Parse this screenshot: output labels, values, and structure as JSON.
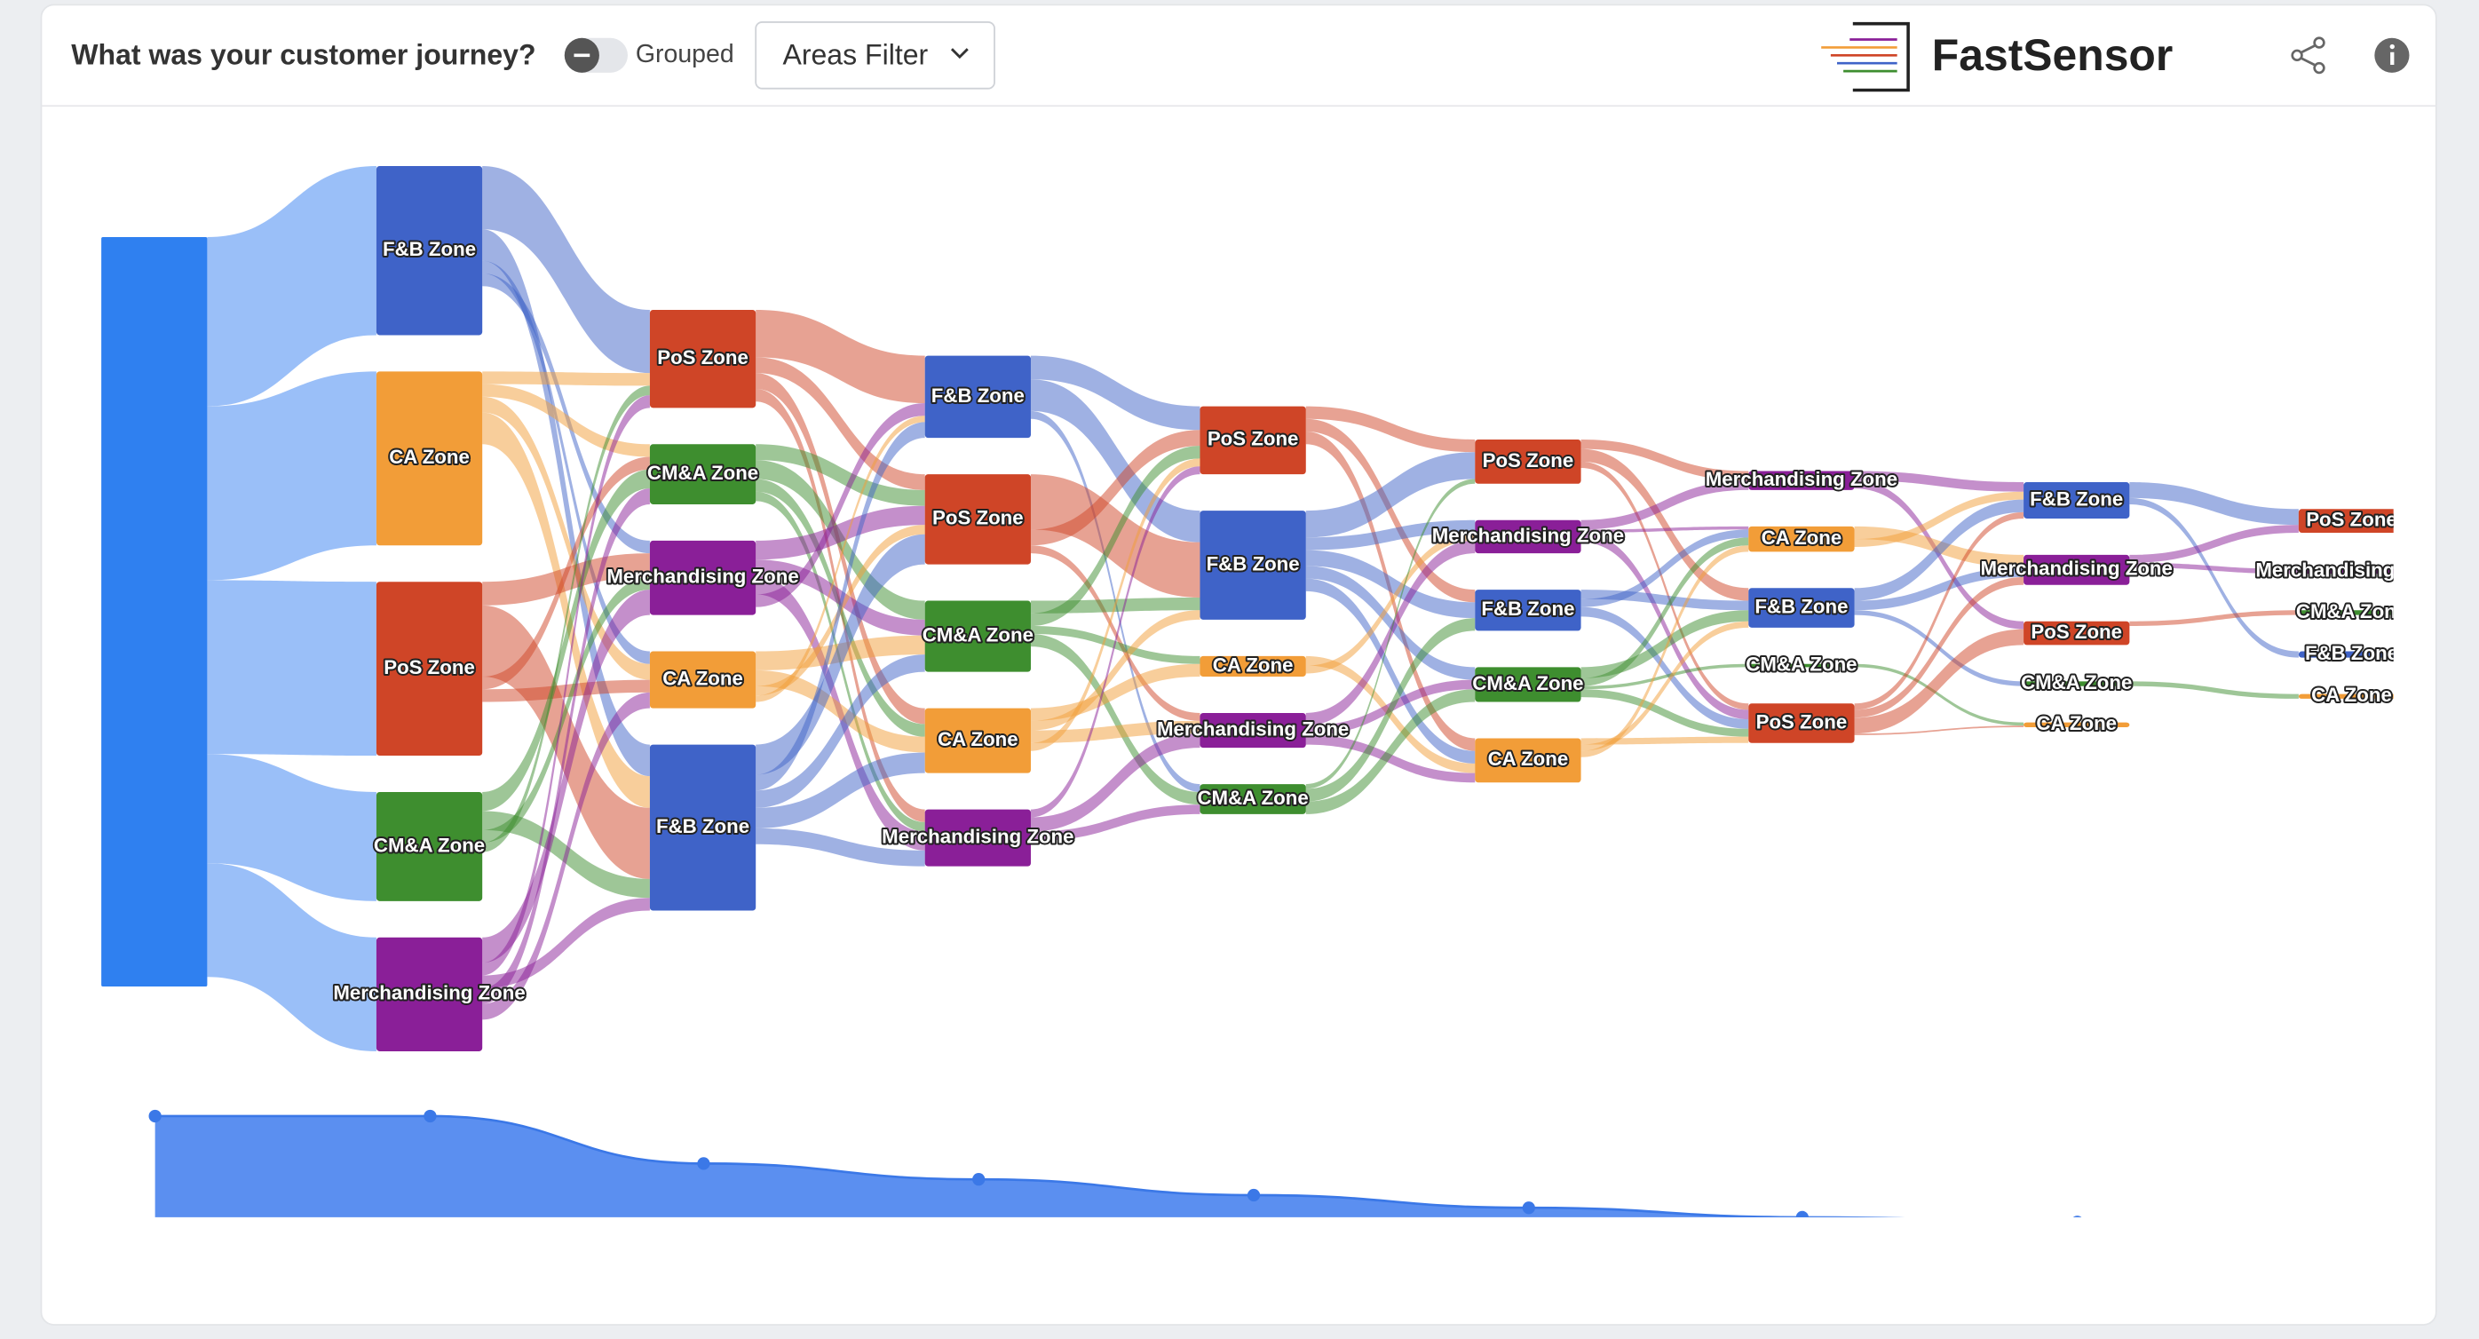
{
  "header": {
    "title": "What was your customer journey?",
    "toggle_label": "Grouped",
    "filter_button": "Areas Filter",
    "brand": "FastSensor"
  },
  "chart_data": [
    {
      "type": "sankey",
      "source_color": "#2f80f0",
      "colors": {
        "F&B Zone": "#3f63c8",
        "CA Zone": "#f29d38",
        "PoS Zone": "#cf4527",
        "CM&A Zone": "#3e8e2f",
        "Merchandising Zone": "#8a1f98"
      },
      "nodes": [
        [
          {
            "label": null,
            "value": 474
          }
        ],
        [
          {
            "label": "F&B Zone",
            "value": 107
          },
          {
            "label": "CA Zone",
            "value": 110
          },
          {
            "label": "PoS Zone",
            "value": 110
          },
          {
            "label": "CM&A Zone",
            "value": 69
          },
          {
            "label": "Merchandising Zone",
            "value": 72
          }
        ],
        [
          {
            "label": "PoS Zone",
            "value": 62
          },
          {
            "label": "CM&A Zone",
            "value": 38
          },
          {
            "label": "Merchandising Zone",
            "value": 47
          },
          {
            "label": "CA Zone",
            "value": 36
          },
          {
            "label": "F&B Zone",
            "value": 105
          }
        ],
        [
          {
            "label": "F&B Zone",
            "value": 52
          },
          {
            "label": "PoS Zone",
            "value": 57
          },
          {
            "label": "CM&A Zone",
            "value": 45
          },
          {
            "label": "CA Zone",
            "value": 41
          },
          {
            "label": "Merchandising Zone",
            "value": 36
          }
        ],
        [
          {
            "label": "PoS Zone",
            "value": 43
          },
          {
            "label": "F&B Zone",
            "value": 69
          },
          {
            "label": "CA Zone",
            "value": 13
          },
          {
            "label": "Merchandising Zone",
            "value": 22
          },
          {
            "label": "CM&A Zone",
            "value": 19
          }
        ],
        [
          {
            "label": "PoS Zone",
            "value": 28
          },
          {
            "label": "Merchandising Zone",
            "value": 21
          },
          {
            "label": "F&B Zone",
            "value": 26
          },
          {
            "label": "CM&A Zone",
            "value": 22
          },
          {
            "label": "CA Zone",
            "value": 28
          }
        ],
        [
          {
            "label": "Merchandising Zone",
            "value": 12
          },
          {
            "label": "CA Zone",
            "value": 16
          },
          {
            "label": "F&B Zone",
            "value": 25
          },
          {
            "label": "CM&A Zone",
            "value": 2
          },
          {
            "label": "PoS Zone",
            "value": 25
          }
        ],
        [
          {
            "label": "F&B Zone",
            "value": 23
          },
          {
            "label": "Merchandising Zone",
            "value": 19
          },
          {
            "label": "PoS Zone",
            "value": 15
          },
          {
            "label": "CM&A Zone",
            "value": 3
          },
          {
            "label": "CA Zone",
            "value": 3
          }
        ],
        [
          {
            "label": "PoS Zone",
            "value": 15
          },
          {
            "label": "Merchandising Zone",
            "value": 3
          },
          {
            "label": "CM&A Zone",
            "value": 3
          },
          {
            "label": "F&B Zone",
            "value": 4
          },
          {
            "label": "CA Zone",
            "value": 3
          }
        ]
      ],
      "links": [
        [
          [
            0,
            0,
            107
          ],
          [
            0,
            1,
            110
          ],
          [
            0,
            2,
            110
          ],
          [
            0,
            3,
            69
          ],
          [
            0,
            4,
            72
          ]
        ],
        [
          [
            0,
            0,
            40
          ],
          [
            0,
            4,
            20
          ],
          [
            0,
            3,
            8
          ],
          [
            0,
            2,
            8
          ],
          [
            1,
            0,
            8
          ],
          [
            1,
            1,
            8
          ],
          [
            1,
            3,
            10
          ],
          [
            1,
            4,
            20
          ],
          [
            2,
            2,
            15
          ],
          [
            2,
            4,
            45
          ],
          [
            2,
            1,
            8
          ],
          [
            2,
            3,
            8
          ],
          [
            3,
            1,
            12
          ],
          [
            3,
            4,
            12
          ],
          [
            3,
            2,
            8
          ],
          [
            3,
            0,
            6
          ],
          [
            4,
            2,
            16
          ],
          [
            4,
            0,
            8
          ],
          [
            4,
            4,
            8
          ],
          [
            4,
            1,
            10
          ],
          [
            4,
            3,
            10
          ]
        ],
        [
          [
            0,
            0,
            30
          ],
          [
            0,
            1,
            10
          ],
          [
            0,
            3,
            10
          ],
          [
            0,
            4,
            8
          ],
          [
            1,
            1,
            10
          ],
          [
            1,
            2,
            12
          ],
          [
            1,
            3,
            8
          ],
          [
            1,
            4,
            6
          ],
          [
            2,
            1,
            12
          ],
          [
            2,
            2,
            10
          ],
          [
            2,
            4,
            12
          ],
          [
            2,
            0,
            8
          ],
          [
            3,
            2,
            12
          ],
          [
            3,
            3,
            10
          ],
          [
            3,
            1,
            6
          ],
          [
            3,
            0,
            4
          ],
          [
            4,
            1,
            19
          ],
          [
            4,
            0,
            10
          ],
          [
            4,
            2,
            11
          ],
          [
            4,
            3,
            13
          ],
          [
            4,
            4,
            10
          ]
        ],
        [
          [
            0,
            0,
            15
          ],
          [
            0,
            1,
            20
          ],
          [
            0,
            4,
            5
          ],
          [
            1,
            1,
            35
          ],
          [
            1,
            0,
            10
          ],
          [
            1,
            3,
            5
          ],
          [
            2,
            1,
            8
          ],
          [
            2,
            0,
            8
          ],
          [
            2,
            2,
            5
          ],
          [
            2,
            4,
            8
          ],
          [
            3,
            2,
            8
          ],
          [
            3,
            1,
            6
          ],
          [
            3,
            3,
            8
          ],
          [
            3,
            0,
            5
          ],
          [
            4,
            0,
            5
          ],
          [
            4,
            3,
            9
          ],
          [
            4,
            4,
            6
          ]
        ],
        [
          [
            0,
            0,
            8
          ],
          [
            0,
            2,
            8
          ],
          [
            0,
            4,
            8
          ],
          [
            1,
            0,
            17
          ],
          [
            1,
            1,
            8
          ],
          [
            1,
            2,
            10
          ],
          [
            1,
            3,
            8
          ],
          [
            1,
            4,
            8
          ],
          [
            2,
            4,
            6
          ],
          [
            2,
            1,
            5
          ],
          [
            3,
            1,
            8
          ],
          [
            3,
            3,
            6
          ],
          [
            3,
            4,
            6
          ],
          [
            4,
            0,
            3
          ],
          [
            4,
            2,
            8
          ],
          [
            4,
            3,
            8
          ]
        ],
        [
          [
            0,
            0,
            6
          ],
          [
            0,
            2,
            8
          ],
          [
            0,
            4,
            4
          ],
          [
            1,
            0,
            6
          ],
          [
            1,
            1,
            2
          ],
          [
            1,
            4,
            6
          ],
          [
            2,
            2,
            6
          ],
          [
            2,
            1,
            5
          ],
          [
            2,
            4,
            6
          ],
          [
            3,
            2,
            7
          ],
          [
            3,
            1,
            5
          ],
          [
            3,
            3,
            2
          ],
          [
            3,
            4,
            5
          ],
          [
            4,
            4,
            4
          ],
          [
            4,
            2,
            4
          ],
          [
            4,
            1,
            4
          ]
        ],
        [
          [
            0,
            0,
            6
          ],
          [
            0,
            2,
            5
          ],
          [
            1,
            1,
            8
          ],
          [
            1,
            0,
            5
          ],
          [
            2,
            0,
            8
          ],
          [
            2,
            1,
            6
          ],
          [
            2,
            3,
            3
          ],
          [
            3,
            4,
            2
          ],
          [
            4,
            0,
            4
          ],
          [
            4,
            1,
            5
          ],
          [
            4,
            2,
            10
          ],
          [
            4,
            4,
            1
          ]
        ],
        [
          [
            0,
            0,
            10
          ],
          [
            0,
            3,
            4
          ],
          [
            1,
            0,
            5
          ],
          [
            1,
            1,
            3
          ],
          [
            2,
            2,
            3
          ],
          [
            3,
            4,
            3
          ]
        ]
      ]
    },
    {
      "type": "area",
      "values": [
        79,
        79,
        49,
        39,
        29,
        21,
        15,
        12,
        6
      ],
      "color": "#5b8ff0",
      "line_color": "#3b78e7"
    }
  ]
}
